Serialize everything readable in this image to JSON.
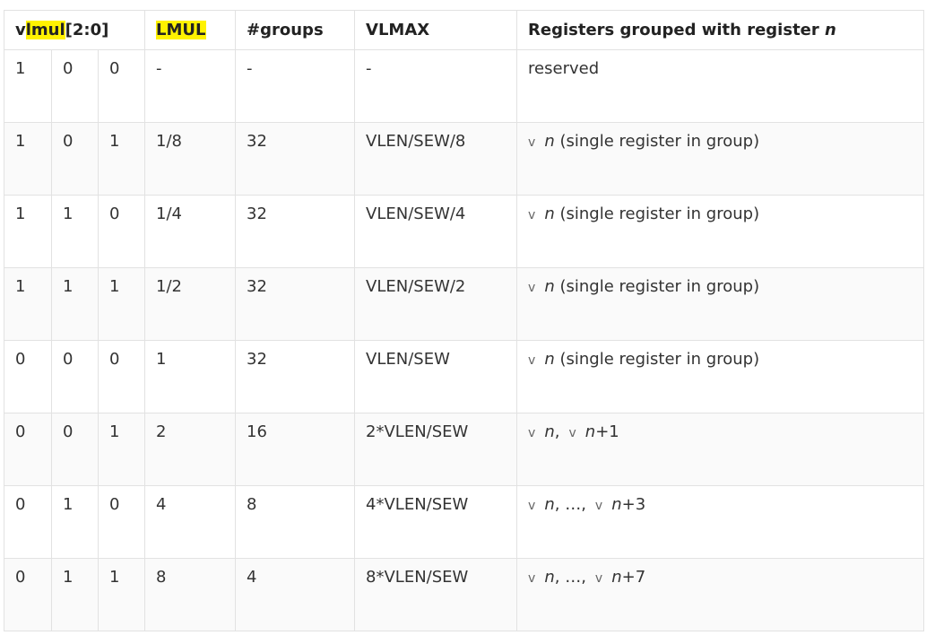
{
  "header": {
    "vlmul_pre": "v",
    "vlmul_hl": "lmul",
    "vlmul_post": "[2:0]",
    "lmul": "LMUL",
    "groups": "#groups",
    "vlmax": "VLMAX",
    "registers_prefix": "Registers grouped with register",
    "registers_var": "n"
  },
  "rows": [
    {
      "b2": "1",
      "b1": "0",
      "b0": "0",
      "lmul": "-",
      "groups": "-",
      "vlmax": "-",
      "reserved": "reserved"
    },
    {
      "b2": "1",
      "b1": "0",
      "b0": "1",
      "lmul": "1/8",
      "groups": "32",
      "vlmax": "VLEN/SEW/8",
      "sym": "v",
      "var": "n",
      "desc": "(single register in group)"
    },
    {
      "b2": "1",
      "b1": "1",
      "b0": "0",
      "lmul": "1/4",
      "groups": "32",
      "vlmax": "VLEN/SEW/4",
      "sym": "v",
      "var": "n",
      "desc": "(single register in group)"
    },
    {
      "b2": "1",
      "b1": "1",
      "b0": "1",
      "lmul": "1/2",
      "groups": "32",
      "vlmax": "VLEN/SEW/2",
      "sym": "v",
      "var": "n",
      "desc": "(single register in group)"
    },
    {
      "b2": "0",
      "b1": "0",
      "b0": "0",
      "lmul": "1",
      "groups": "32",
      "vlmax": "VLEN/SEW",
      "sym": "v",
      "var": "n",
      "desc": "(single register in group)"
    },
    {
      "b2": "0",
      "b1": "0",
      "b0": "1",
      "lmul": "2",
      "groups": "16",
      "vlmax": "2*VLEN/SEW",
      "sym": "v",
      "var": "n",
      "sep": ",",
      "sym2": "v",
      "var2": "n",
      "suffix": "+1"
    },
    {
      "b2": "0",
      "b1": "1",
      "b0": "0",
      "lmul": "4",
      "groups": "8",
      "vlmax": "4*VLEN/SEW",
      "sym": "v",
      "var": "n",
      "sep": ", …,",
      "sym2": "v",
      "var2": "n",
      "suffix": "+3"
    },
    {
      "b2": "0",
      "b1": "1",
      "b0": "1",
      "lmul": "8",
      "groups": "4",
      "vlmax": "8*VLEN/SEW",
      "sym": "v",
      "var": "n",
      "sep": ", …,",
      "sym2": "v",
      "var2": "n",
      "suffix": "+7"
    }
  ]
}
